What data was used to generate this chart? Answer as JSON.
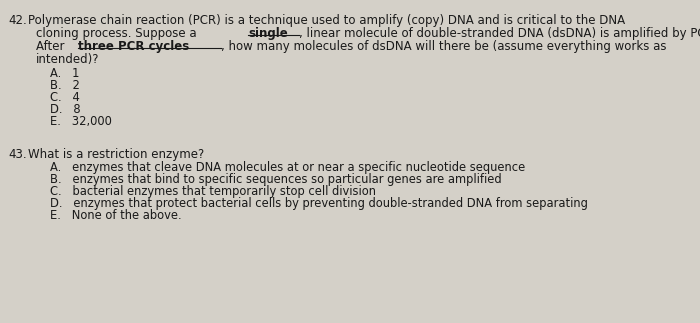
{
  "background_color": "#d4d0c8",
  "text_color": "#1a1a1a",
  "q42_number": "42.",
  "q42_line1": "Polymerase chain reaction (PCR) is a technique used to amplify (copy) DNA and is critical to the DNA",
  "q42_line2_pre": "cloning process. Suppose a ",
  "q42_line2_bold": "single",
  "q42_line2_post": ", linear molecule of double-stranded DNA (dsDNA) is amplified by PCR.",
  "q42_line3_pre": "After ",
  "q42_line3_bold": "three PCR cycles",
  "q42_line3_post": ", how many molecules of dsDNA will there be (assume everything works as",
  "q42_line4": "intended)?",
  "q42_choices": [
    "A.   1",
    "B.   2",
    "C.   4",
    "D.   8",
    "E.   32,000"
  ],
  "q43_number": "43.",
  "q43_question": "What is a restriction enzyme?",
  "q43_choices": [
    "A.   enzymes that cleave DNA molecules at or near a specific nucleotide sequence",
    "B.   enzymes that bind to specific sequences so particular genes are amplified",
    "C.   bacterial enzymes that temporarily stop cell division",
    "D.   enzymes that protect bacterial cells by preventing double-stranded DNA from separating",
    "E.   None of the above."
  ],
  "font_size_main": 8.5,
  "font_size_choices": 8.3
}
